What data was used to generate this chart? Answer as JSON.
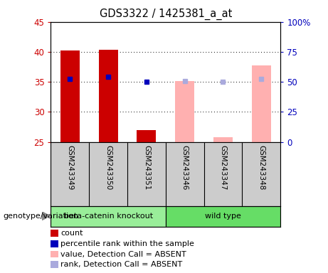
{
  "title": "GDS3322 / 1425381_a_at",
  "samples": [
    "GSM243349",
    "GSM243350",
    "GSM243351",
    "GSM243346",
    "GSM243347",
    "GSM243348"
  ],
  "ylim_left": [
    25,
    45
  ],
  "ylim_right": [
    0,
    100
  ],
  "yticks_left": [
    25,
    30,
    35,
    40,
    45
  ],
  "yticks_right": [
    0,
    25,
    50,
    75,
    100
  ],
  "yticklabels_right": [
    "0",
    "25",
    "50",
    "75",
    "100%"
  ],
  "count_values": [
    40.2,
    40.4,
    27.0,
    null,
    null,
    null
  ],
  "count_absent_values": [
    null,
    null,
    null,
    35.2,
    25.8,
    37.8
  ],
  "percentile_values": [
    35.5,
    35.8,
    35.0,
    null,
    null,
    null
  ],
  "percentile_absent_values": [
    null,
    null,
    null,
    35.2,
    35.0,
    35.5
  ],
  "bar_width": 0.5,
  "count_color": "#cc0000",
  "count_absent_color": "#ffb0b0",
  "percentile_color": "#0000bb",
  "percentile_absent_color": "#aaaadd",
  "sample_bg_color": "#cccccc",
  "plot_bg_color": "#ffffff",
  "group1_color": "#99ee99",
  "group2_color": "#66dd66",
  "legend_items": [
    {
      "label": "count",
      "color": "#cc0000"
    },
    {
      "label": "percentile rank within the sample",
      "color": "#0000bb"
    },
    {
      "label": "value, Detection Call = ABSENT",
      "color": "#ffb0b0"
    },
    {
      "label": "rank, Detection Call = ABSENT",
      "color": "#aaaadd"
    }
  ]
}
